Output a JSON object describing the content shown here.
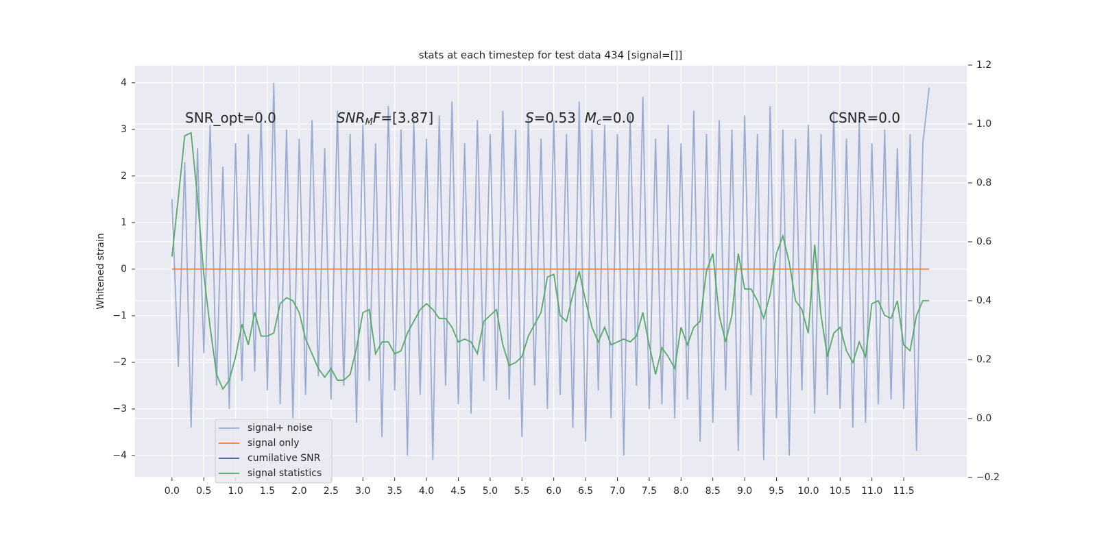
{
  "chart_data": {
    "type": "line",
    "title": "stats at each timestep for test data 434 [signal=[]]",
    "ylabel": "Whitened strain",
    "annotations": [
      [
        {
          "text": "SNR_opt=0.0"
        }
      ],
      [
        {
          "text": "SNR",
          "italic": true
        },
        {
          "text": "M",
          "italic": true,
          "sub": true
        },
        {
          "text": "F",
          "italic": true
        },
        {
          "text": "=[3.87]"
        }
      ],
      [
        {
          "text": "S",
          "italic": true
        },
        {
          "text": "=0.53  "
        },
        {
          "text": "M",
          "italic": true
        },
        {
          "text": "c",
          "italic": true,
          "sub": true
        },
        {
          "text": "=0.0"
        }
      ],
      [
        {
          "text": "CSNR=0.0"
        }
      ]
    ],
    "legend": "lower left",
    "grid": true,
    "xlim": [
      -0.58,
      12.49
    ],
    "ylim": [
      -4.47,
      4.38
    ],
    "y2lim": [
      -0.2,
      1.2
    ],
    "xticks": [
      {
        "value": 0,
        "label": "0.0"
      },
      0.5,
      {
        "value": 1,
        "label": "1.0"
      },
      1.5,
      {
        "value": 2,
        "label": "2.0"
      },
      2.5,
      {
        "value": 3,
        "label": "3.0"
      },
      3.5,
      {
        "value": 4,
        "label": "4.0"
      },
      4.5,
      {
        "value": 5,
        "label": "5.0"
      },
      5.5,
      {
        "value": 6,
        "label": "6.0"
      },
      6.5,
      {
        "value": 7,
        "label": "7.0"
      },
      7.5,
      {
        "value": 8,
        "label": "8.0"
      },
      8.5,
      {
        "value": 9,
        "label": "9.0"
      },
      9.5,
      {
        "value": 10,
        "label": "10.0"
      },
      10.5,
      {
        "value": 11,
        "label": "11.0"
      },
      11.5
    ],
    "yticks": [
      {
        "value": -4,
        "label": "−4"
      },
      {
        "value": -3,
        "label": "−3"
      },
      {
        "value": -2,
        "label": "−2"
      },
      {
        "value": -1,
        "label": "−1"
      },
      0,
      1,
      2,
      3,
      4
    ],
    "y2ticks": [
      {
        "value": -0.2,
        "label": "−0.2"
      },
      {
        "value": 0,
        "label": "0.0"
      },
      0.2,
      0.4,
      0.6,
      0.8,
      {
        "value": 1,
        "label": "1.0"
      },
      1.2
    ],
    "x": [
      0.0,
      0.1,
      0.2,
      0.3,
      0.4,
      0.5,
      0.6,
      0.7,
      0.8,
      0.9,
      1.0,
      1.1,
      1.2,
      1.3,
      1.4,
      1.5,
      1.6,
      1.7,
      1.8,
      1.9,
      2.0,
      2.1,
      2.2,
      2.3,
      2.4,
      2.5,
      2.6,
      2.7,
      2.8,
      2.9,
      3.0,
      3.1,
      3.2,
      3.3,
      3.4,
      3.5,
      3.6,
      3.7,
      3.8,
      3.9,
      4.0,
      4.1,
      4.2,
      4.3,
      4.4,
      4.5,
      4.6,
      4.7,
      4.8,
      4.9,
      5.0,
      5.1,
      5.2,
      5.3,
      5.4,
      5.5,
      5.6,
      5.7,
      5.8,
      5.9,
      6.0,
      6.1,
      6.2,
      6.3,
      6.4,
      6.5,
      6.6,
      6.7,
      6.8,
      6.9,
      7.0,
      7.1,
      7.2,
      7.3,
      7.4,
      7.5,
      7.6,
      7.7,
      7.8,
      7.9,
      8.0,
      8.1,
      8.2,
      8.3,
      8.4,
      8.5,
      8.6,
      8.7,
      8.8,
      8.9,
      9.0,
      9.1,
      9.2,
      9.3,
      9.4,
      9.5,
      9.6,
      9.7,
      9.8,
      9.9,
      10.0,
      10.1,
      10.2,
      10.3,
      10.4,
      10.5,
      10.6,
      10.7,
      10.8,
      10.9,
      11.0,
      11.1,
      11.2,
      11.3,
      11.4,
      11.5,
      11.6,
      11.7,
      11.8,
      11.9
    ],
    "series": [
      {
        "name": "signal+ noise",
        "color": "#9aabd0",
        "values": [
          1.5,
          -2.1,
          2.3,
          -3.4,
          2.6,
          -1.8,
          3.1,
          -2.5,
          2.2,
          -3.0,
          2.7,
          -2.4,
          2.9,
          -2.2,
          3.3,
          -2.6,
          4.0,
          -2.9,
          3.0,
          -3.2,
          2.8,
          -2.7,
          3.2,
          -2.3,
          2.6,
          -2.8,
          3.4,
          -2.5,
          2.9,
          -3.3,
          3.1,
          -2.4,
          2.7,
          -3.6,
          3.5,
          -2.6,
          3.0,
          -4.0,
          3.2,
          -2.7,
          2.8,
          -4.1,
          3.3,
          -2.5,
          3.6,
          -2.9,
          2.7,
          -3.1,
          3.2,
          -2.4,
          2.9,
          -2.6,
          3.4,
          -2.8,
          3.0,
          -3.6,
          3.3,
          -2.5,
          2.8,
          -3.0,
          3.2,
          -2.7,
          2.9,
          -3.4,
          3.6,
          -3.7,
          3.0,
          -2.6,
          3.1,
          -3.2,
          2.9,
          -4.0,
          3.3,
          -2.5,
          3.7,
          -3.0,
          2.8,
          -2.9,
          3.1,
          -3.2,
          2.7,
          -2.8,
          3.4,
          -3.7,
          2.9,
          -3.3,
          3.2,
          -2.6,
          3.0,
          -3.9,
          3.3,
          -2.7,
          2.9,
          -4.1,
          3.5,
          -3.2,
          3.0,
          -4.0,
          2.8,
          -2.6,
          3.1,
          -3.1,
          2.9,
          -2.7,
          3.4,
          -3.0,
          2.8,
          -3.4,
          3.2,
          -3.3,
          2.7,
          -2.9,
          3.0,
          -2.8,
          2.6,
          -3.0,
          2.9,
          -3.9,
          2.7,
          3.9
        ]
      },
      {
        "name": "signal only",
        "color": "#dd8452",
        "values": [
          0,
          0,
          0,
          0,
          0,
          0,
          0,
          0,
          0,
          0,
          0,
          0,
          0,
          0,
          0,
          0,
          0,
          0,
          0,
          0,
          0,
          0,
          0,
          0,
          0,
          0,
          0,
          0,
          0,
          0,
          0,
          0,
          0,
          0,
          0,
          0,
          0,
          0,
          0,
          0,
          0,
          0,
          0,
          0,
          0,
          0,
          0,
          0,
          0,
          0,
          0,
          0,
          0,
          0,
          0,
          0,
          0,
          0,
          0,
          0,
          0,
          0,
          0,
          0,
          0,
          0,
          0,
          0,
          0,
          0,
          0,
          0,
          0,
          0,
          0,
          0,
          0,
          0,
          0,
          0,
          0,
          0,
          0,
          0,
          0,
          0,
          0,
          0,
          0,
          0,
          0,
          0,
          0,
          0,
          0,
          0,
          0,
          0,
          0,
          0,
          0,
          0,
          0,
          0,
          0,
          0,
          0,
          0,
          0,
          0,
          0,
          0,
          0,
          0,
          0,
          0,
          0,
          0,
          0,
          0
        ]
      },
      {
        "name": "cumilative SNR",
        "color": "#3a5da8",
        "axis": "y2",
        "values": [
          null,
          null,
          null,
          null,
          null,
          null,
          null,
          null,
          null,
          null,
          null,
          null,
          null,
          null,
          null,
          null,
          null,
          null,
          null,
          null,
          null,
          null,
          null,
          null,
          null,
          null,
          null,
          null,
          null,
          null,
          null,
          null,
          null,
          null,
          null,
          null,
          null,
          null,
          null,
          null,
          null,
          null,
          null,
          null,
          null,
          null,
          null,
          null,
          null,
          null,
          null,
          null,
          null,
          null,
          null,
          null,
          null,
          null,
          null,
          null,
          null,
          null,
          null,
          null,
          null,
          null,
          null,
          null,
          null,
          null,
          null,
          null,
          null,
          null,
          null,
          null,
          null,
          null,
          null,
          null,
          null,
          null,
          null,
          null,
          null,
          null,
          null,
          null,
          null,
          null,
          null,
          null,
          null,
          null,
          null,
          null,
          null,
          null,
          null,
          null,
          null,
          null,
          null,
          null,
          null,
          null,
          null,
          null,
          null,
          null,
          null,
          null,
          null,
          null,
          null,
          null,
          null,
          null,
          null,
          null
        ]
      },
      {
        "name": "signal statistics",
        "color": "#55a868",
        "axis": "y2",
        "values": [
          0.55,
          0.75,
          0.96,
          0.97,
          0.75,
          0.49,
          0.31,
          0.15,
          0.1,
          0.13,
          0.21,
          0.32,
          0.25,
          0.36,
          0.28,
          0.28,
          0.29,
          0.39,
          0.41,
          0.4,
          0.36,
          0.27,
          0.22,
          0.17,
          0.14,
          0.17,
          0.13,
          0.13,
          0.15,
          0.24,
          0.36,
          0.37,
          0.22,
          0.26,
          0.26,
          0.22,
          0.23,
          0.29,
          0.33,
          0.37,
          0.39,
          0.37,
          0.34,
          0.34,
          0.31,
          0.26,
          0.27,
          0.26,
          0.22,
          0.33,
          0.35,
          0.37,
          0.25,
          0.18,
          0.19,
          0.21,
          0.28,
          0.32,
          0.36,
          0.48,
          0.49,
          0.35,
          0.33,
          0.42,
          0.5,
          0.4,
          0.31,
          0.26,
          0.31,
          0.25,
          0.26,
          0.27,
          0.26,
          0.28,
          0.36,
          0.25,
          0.15,
          0.24,
          0.21,
          0.17,
          0.31,
          0.25,
          0.31,
          0.33,
          0.5,
          0.56,
          0.35,
          0.26,
          0.35,
          0.56,
          0.44,
          0.44,
          0.4,
          0.34,
          0.42,
          0.56,
          0.62,
          0.53,
          0.4,
          0.37,
          0.29,
          0.59,
          0.35,
          0.21,
          0.29,
          0.31,
          0.23,
          0.19,
          0.26,
          0.21,
          0.39,
          0.4,
          0.35,
          0.34,
          0.4,
          0.25,
          0.23,
          0.35,
          0.4,
          0.4
        ]
      }
    ]
  }
}
